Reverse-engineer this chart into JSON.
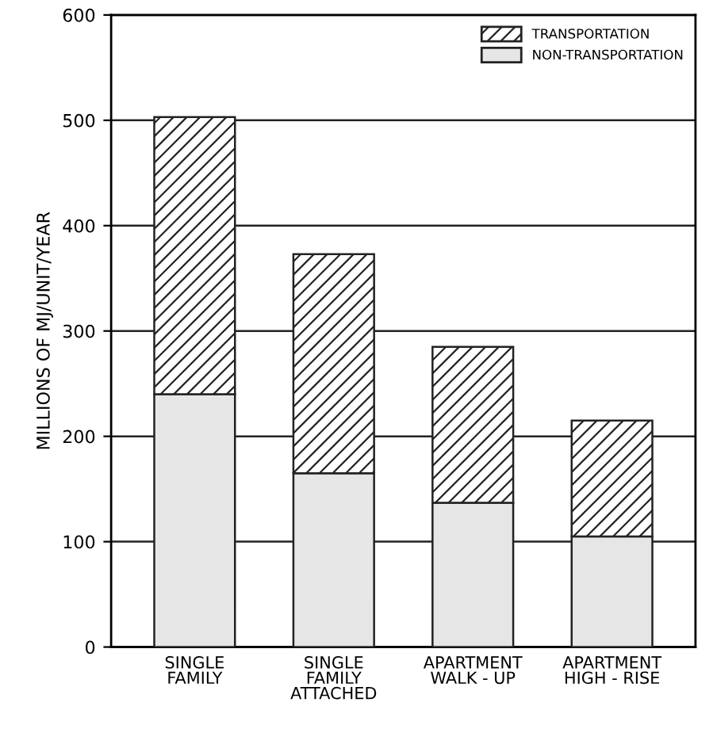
{
  "chart_data": {
    "type": "bar",
    "stacked": true,
    "ylabel": "MILLIONS OF MJ/UNIT/YEAR",
    "categories": [
      "SINGLE\nFAMILY",
      "SINGLE\nFAMILY\nATTACHED",
      "APARTMENT\nWALK - UP",
      "APARTMENT\nHIGH - RISE"
    ],
    "series": [
      {
        "name": "NON-TRANSPORTATION",
        "color": "#e6e6e6",
        "values": [
          240,
          165,
          137,
          105
        ]
      },
      {
        "name": "TRANSPORTATION",
        "color": "#222222",
        "values": [
          263,
          208,
          148,
          110
        ]
      }
    ],
    "ylim": [
      0,
      600
    ],
    "yticks": [
      0,
      100,
      200,
      300,
      400,
      500,
      600
    ],
    "grid": "y",
    "legend": "top right"
  }
}
